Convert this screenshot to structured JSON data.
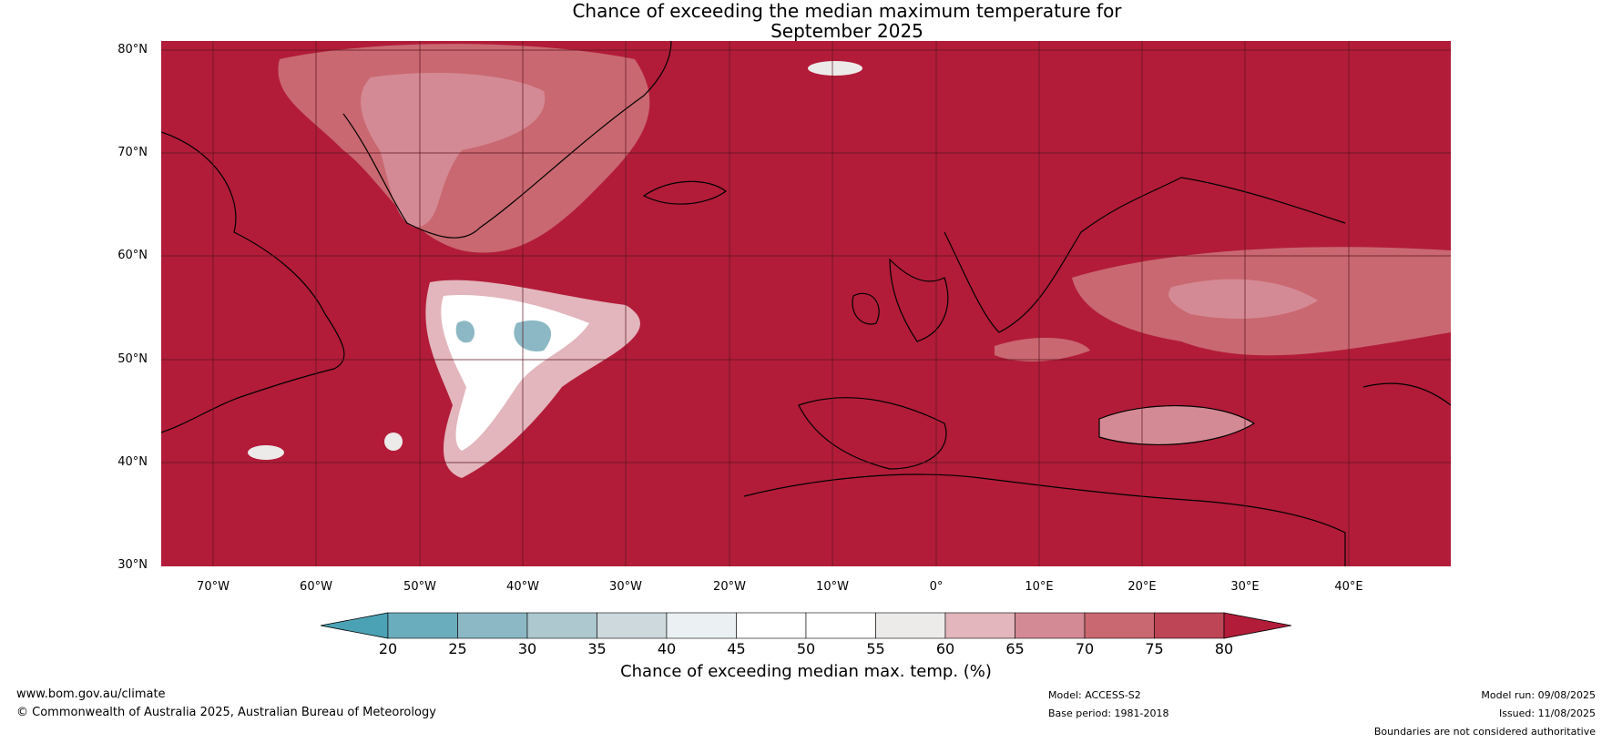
{
  "title_line1": "Chance of exceeding the median maximum temperature for",
  "title_line2": "September 2025",
  "lat_labels": [
    "80°N",
    "70°N",
    "60°N",
    "50°N",
    "40°N",
    "30°N"
  ],
  "lon_labels": [
    "70°W",
    "60°W",
    "50°W",
    "40°W",
    "30°W",
    "20°W",
    "10°W",
    "0°",
    "10°E",
    "20°E",
    "30°E",
    "40°E"
  ],
  "colorbar": {
    "ticks": [
      "20",
      "25",
      "30",
      "35",
      "40",
      "45",
      "50",
      "55",
      "60",
      "65",
      "70",
      "75",
      "80"
    ],
    "colors": [
      "#4ba2b5",
      "#6aadbc",
      "#8bb8c4",
      "#adc8cf",
      "#cdd9dc",
      "#ebf1f2",
      "#ffffff",
      "#ffffff",
      "#ecebea",
      "#e2b6bc",
      "#d48a95",
      "#c96870",
      "#be4555",
      "#b21c39"
    ],
    "label": "Chance of exceeding median max. temp. (%)"
  },
  "map_colors": {
    "base": "#b21c39",
    "gridline": "#5a1522"
  },
  "footer": {
    "url": "www.bom.gov.au/climate",
    "copyright": "© Commonwealth of Australia 2025, Australian Bureau of Meteorology",
    "model": "Model: ACCESS-S2",
    "base_period": "Base period: 1981-2018",
    "model_run": "Model run: 09/08/2025",
    "issued": "Issued: 11/08/2025",
    "disclaimer": "Boundaries are not considered authoritative"
  }
}
